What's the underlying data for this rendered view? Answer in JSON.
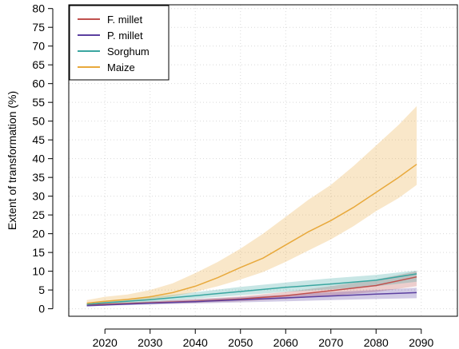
{
  "chart_data": {
    "type": "line",
    "title": "",
    "xlabel": "",
    "ylabel": "Extent of transformation (%)",
    "xlim": [
      2012,
      2098
    ],
    "ylim": [
      -2,
      81
    ],
    "x_ticks": [
      2020,
      2030,
      2040,
      2050,
      2060,
      2070,
      2080,
      2090
    ],
    "y_ticks": [
      0,
      5,
      10,
      15,
      20,
      25,
      30,
      35,
      40,
      45,
      50,
      55,
      60,
      65,
      70,
      75,
      80
    ],
    "grid": true,
    "legend_position": "top-left",
    "series": [
      {
        "name": "F. millet",
        "color": "#c0504d",
        "x": [
          2016,
          2020,
          2030,
          2040,
          2050,
          2060,
          2070,
          2080,
          2089
        ],
        "values": [
          1.0,
          1.2,
          1.6,
          2.0,
          2.6,
          3.5,
          4.8,
          6.2,
          8.5
        ],
        "lower": [
          0.8,
          1.0,
          1.3,
          1.6,
          2.0,
          2.6,
          3.5,
          4.5,
          6.0
        ],
        "upper": [
          1.3,
          1.5,
          2.0,
          2.6,
          3.3,
          4.5,
          6.0,
          7.8,
          10.0
        ]
      },
      {
        "name": "P. millet",
        "color": "#5b3fa0",
        "x": [
          2016,
          2020,
          2030,
          2040,
          2050,
          2060,
          2070,
          2080,
          2089
        ],
        "values": [
          0.8,
          1.0,
          1.5,
          1.9,
          2.4,
          2.9,
          3.4,
          3.9,
          4.3
        ],
        "lower": [
          0.6,
          0.8,
          1.1,
          1.4,
          1.7,
          2.0,
          2.3,
          2.6,
          2.8
        ],
        "upper": [
          1.1,
          1.3,
          1.9,
          2.5,
          3.1,
          3.7,
          4.4,
          5.0,
          5.6
        ]
      },
      {
        "name": "Sorghum",
        "color": "#3aa6a0",
        "x": [
          2016,
          2020,
          2030,
          2040,
          2050,
          2060,
          2070,
          2080,
          2089
        ],
        "values": [
          1.2,
          1.6,
          2.4,
          3.5,
          4.6,
          5.7,
          6.6,
          7.6,
          9.3
        ],
        "lower": [
          0.9,
          1.2,
          1.8,
          2.7,
          3.6,
          4.5,
          5.2,
          6.0,
          7.2
        ],
        "upper": [
          1.6,
          2.1,
          3.1,
          4.4,
          5.8,
          7.0,
          8.1,
          9.0,
          10.2
        ]
      },
      {
        "name": "Maize",
        "color": "#e8a93c",
        "x": [
          2016,
          2020,
          2025,
          2030,
          2035,
          2040,
          2045,
          2050,
          2055,
          2060,
          2065,
          2070,
          2075,
          2080,
          2085,
          2089
        ],
        "values": [
          1.5,
          2.0,
          2.5,
          3.2,
          4.3,
          6.0,
          8.3,
          11.0,
          13.5,
          17.0,
          20.5,
          23.5,
          27.0,
          31.0,
          35.0,
          38.5
        ],
        "lower": [
          1.0,
          1.5,
          2.0,
          2.5,
          3.3,
          4.5,
          6.0,
          7.8,
          9.8,
          12.5,
          15.5,
          18.5,
          22.0,
          26.0,
          29.5,
          33.0
        ],
        "upper": [
          2.3,
          3.2,
          3.8,
          5.0,
          6.8,
          9.5,
          12.5,
          16.0,
          20.0,
          24.5,
          29.0,
          33.0,
          38.0,
          43.5,
          49.0,
          54.0
        ]
      }
    ]
  }
}
